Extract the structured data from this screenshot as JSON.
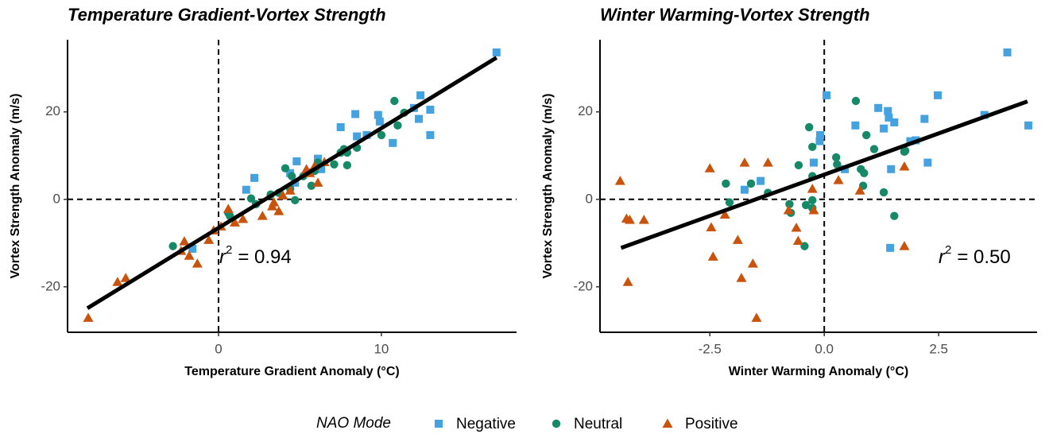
{
  "chart_data": [
    {
      "type": "scatter",
      "title": "Temperature Gradient-Vortex Strength",
      "x_label": "Temperature Gradient Anomaly (°C)",
      "y_label": "Vortex Strength Anomaly (m/s)",
      "xlim": [
        -9.27,
        18.3
      ],
      "ylim": [
        -30.4,
        36.5
      ],
      "xticks": [
        0,
        10
      ],
      "yticks": [
        -20,
        0,
        20
      ],
      "vline": 0,
      "hline": 0,
      "fit": {
        "x": [
          -8.05,
          17.07
        ],
        "y": [
          -24.9,
          32.4
        ]
      },
      "annotation": {
        "symbol": "r",
        "superscript": "2",
        "text": "= 0.94"
      },
      "series": [
        {
          "name": "Negative",
          "color": "#45a2e0",
          "marker": "square",
          "x": [
            17.07,
            12.4,
            12.3,
            13.0,
            13.0,
            12.0,
            10.7,
            9.8,
            9.9,
            8.4,
            8.5,
            9.1,
            7.5,
            6.1,
            6.3,
            4.7,
            4.8,
            4.4,
            2.2,
            1.7,
            -1.6
          ],
          "values": [
            33.6,
            23.8,
            18.4,
            20.5,
            14.7,
            20.9,
            12.9,
            19.3,
            17.8,
            19.5,
            14.4,
            14.7,
            16.5,
            9.3,
            6.9,
            3.8,
            8.7,
            6.0,
            4.9,
            2.2,
            -11.3
          ]
        },
        {
          "name": "Neutral",
          "color": "#168a68",
          "marker": "circle",
          "x": [
            10.8,
            11.0,
            11.4,
            10.0,
            7.7,
            7.5,
            7.9,
            8.5,
            7.9,
            7.1,
            6.1,
            5.9,
            5.2,
            4.5,
            4.1,
            4.4,
            4.7,
            3.2,
            3.7,
            2.0,
            2.3,
            0.6,
            0.7,
            -2.8,
            5.7
          ],
          "values": [
            22.5,
            16.9,
            19.8,
            14.7,
            11.5,
            10.7,
            10.7,
            11.8,
            7.8,
            8.0,
            8.4,
            6.5,
            5.3,
            5.3,
            7.1,
            2.4,
            -0.2,
            1.1,
            1.5,
            0.2,
            -1.1,
            -3.1,
            -3.8,
            -10.7,
            3.1
          ]
        },
        {
          "name": "Positive",
          "color": "#c9530c",
          "marker": "triangle",
          "x": [
            -8.0,
            -6.2,
            -5.7,
            -2.3,
            -2.1,
            -1.8,
            -1.3,
            -0.6,
            -0.3,
            0.15,
            1.0,
            1.5,
            2.7,
            3.3,
            3.7,
            3.4,
            3.95,
            4.4,
            5.4,
            5.6,
            6.1,
            6.5,
            5.9,
            0.6
          ],
          "values": [
            -27.1,
            -18.9,
            -18.0,
            -11.8,
            -9.6,
            -12.9,
            -14.7,
            -9.3,
            -7.1,
            -6.2,
            -5.3,
            -4.5,
            -3.8,
            -1.6,
            -2.7,
            -0.7,
            0.9,
            2.0,
            6.9,
            6.0,
            3.8,
            8.5,
            7.6,
            -2.2
          ]
        }
      ]
    },
    {
      "type": "scatter",
      "title": "Winter Warming-Vortex Strength",
      "x_label": "Winter Warming Anomaly (°C)",
      "y_label": "Vortex Strength Anomaly (m/s)",
      "xlim": [
        -4.9,
        4.65
      ],
      "ylim": [
        -30.4,
        36.5
      ],
      "xticks": [
        -2.5,
        {
          "value": 0,
          "label": "0.0"
        },
        2.5
      ],
      "yticks": [
        -20,
        0,
        20
      ],
      "vline": 0,
      "hline": 0,
      "fit": {
        "x": [
          -4.44,
          4.44
        ],
        "y": [
          -11.1,
          22.4
        ]
      },
      "annotation": {
        "symbol": "r",
        "superscript": "2",
        "text": "= 0.50"
      },
      "series": [
        {
          "name": "Negative",
          "color": "#45a2e0",
          "marker": "square",
          "x": [
            4.0,
            4.46,
            3.5,
            2.48,
            2.19,
            2.26,
            1.88,
            2.0,
            1.53,
            1.39,
            1.41,
            1.18,
            1.3,
            1.46,
            1.44,
            0.05,
            -0.09,
            -0.1,
            -0.23,
            0.68,
            0.45,
            -1.39,
            -1.74
          ],
          "values": [
            33.6,
            16.9,
            19.3,
            23.8,
            18.4,
            8.4,
            13.3,
            13.5,
            17.6,
            20.2,
            18.7,
            20.9,
            16.2,
            6.9,
            -11.1,
            23.8,
            14.7,
            13.3,
            8.4,
            16.9,
            6.9,
            4.2,
            2.2
          ]
        },
        {
          "name": "Neutral",
          "color": "#168a68",
          "marker": "circle",
          "x": [
            0.69,
            0.92,
            1.09,
            1.75,
            1.77,
            0.26,
            0.28,
            -0.33,
            -0.26,
            -0.56,
            -0.26,
            0.8,
            0.87,
            0.85,
            1.3,
            1.53,
            -0.26,
            -0.26,
            -0.4,
            -0.43,
            -1.23,
            -1.6,
            -2.15,
            -2.07,
            -0.76,
            -0.73
          ],
          "values": [
            22.5,
            14.7,
            11.5,
            10.9,
            11.1,
            9.6,
            8.0,
            16.5,
            12.0,
            7.8,
            5.3,
            6.9,
            6.0,
            3.1,
            1.6,
            -3.8,
            -0.2,
            -2.0,
            -1.3,
            -10.7,
            1.5,
            3.6,
            3.6,
            -0.7,
            -1.1,
            -3.1
          ]
        },
        {
          "name": "Positive",
          "color": "#c9530c",
          "marker": "triangle",
          "x": [
            -4.46,
            -4.32,
            -4.25,
            -3.94,
            -4.29,
            -2.5,
            -2.47,
            -2.43,
            -2.17,
            -1.74,
            -1.89,
            -1.81,
            -1.56,
            -1.48,
            -1.23,
            -0.78,
            -0.61,
            -0.57,
            -0.26,
            -0.23,
            0.31,
            0.78,
            1.75,
            1.75
          ],
          "values": [
            4.2,
            -4.4,
            -4.7,
            -4.7,
            -18.9,
            7.1,
            -6.4,
            -13.1,
            -3.5,
            8.4,
            -9.3,
            -18.0,
            -14.7,
            -27.1,
            8.4,
            -2.5,
            -6.5,
            -9.5,
            2.4,
            -2.5,
            4.4,
            2.0,
            7.5,
            -10.7
          ]
        }
      ]
    }
  ],
  "legend": {
    "title": "NAO Mode"
  }
}
